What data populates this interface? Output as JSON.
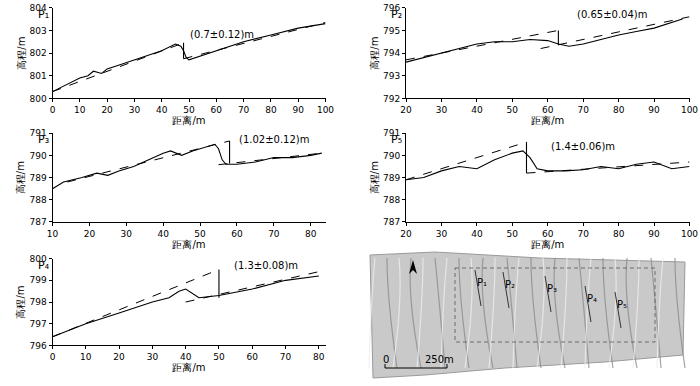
{
  "chart_data": [
    {
      "type": "line",
      "title": "P₁",
      "x_label": "距离/m",
      "y_label": "高程/m",
      "xlim": [
        0,
        100
      ],
      "xticks": [
        0,
        10,
        20,
        30,
        40,
        50,
        60,
        70,
        80,
        90,
        100
      ],
      "ylim": [
        800,
        804
      ],
      "yticks": [
        800,
        801,
        802,
        803,
        804
      ],
      "grid": false,
      "series": [
        {
          "x": [
            0,
            5,
            10,
            13,
            15,
            18,
            20,
            25,
            30,
            35,
            40,
            45,
            47,
            48,
            49,
            50,
            55,
            60,
            70,
            80,
            90,
            100
          ],
          "values": [
            800.3,
            800.6,
            800.9,
            801.0,
            801.2,
            801.1,
            801.3,
            801.5,
            801.7,
            801.9,
            802.1,
            802.4,
            802.3,
            802.1,
            801.8,
            801.7,
            801.9,
            802.1,
            802.5,
            802.8,
            803.1,
            803.3
          ],
          "line_style": "solid",
          "color": "#000000"
        },
        {
          "x": [
            0,
            48
          ],
          "values": [
            800.3,
            802.45
          ],
          "line_style": "dash",
          "color": "#000000"
        },
        {
          "x": [
            48,
            100
          ],
          "values": [
            801.75,
            803.35
          ],
          "line_style": "dash",
          "color": "#000000"
        },
        {
          "x": [
            48,
            48
          ],
          "values": [
            802.45,
            801.75
          ],
          "line_style": "solid",
          "color": "#000000"
        }
      ],
      "annotations": [
        {
          "text": "(0.7±0.12)m",
          "x": 62,
          "y": 802.8
        }
      ]
    },
    {
      "type": "line",
      "title": "P₂",
      "x_label": "距离/m",
      "y_label": "高程/m",
      "xlim": [
        20,
        100
      ],
      "xticks": [
        20,
        30,
        40,
        50,
        60,
        70,
        80,
        90,
        100
      ],
      "ylim": [
        792,
        796
      ],
      "yticks": [
        792,
        793,
        794,
        795,
        796
      ],
      "grid": false,
      "series": [
        {
          "x": [
            20,
            25,
            30,
            35,
            40,
            45,
            50,
            55,
            60,
            63,
            66,
            70,
            75,
            80,
            85,
            90,
            98
          ],
          "values": [
            793.6,
            793.8,
            794.0,
            794.2,
            794.4,
            794.5,
            794.5,
            794.6,
            794.55,
            794.4,
            794.3,
            794.4,
            794.6,
            794.8,
            794.95,
            795.1,
            795.5
          ],
          "line_style": "solid",
          "color": "#000000"
        },
        {
          "x": [
            20,
            63
          ],
          "values": [
            793.7,
            795.0
          ],
          "line_style": "dash",
          "color": "#000000"
        },
        {
          "x": [
            58,
            100
          ],
          "values": [
            794.2,
            795.6
          ],
          "line_style": "dash",
          "color": "#000000"
        },
        {
          "x": [
            63,
            63
          ],
          "values": [
            795.0,
            794.35
          ],
          "line_style": "solid",
          "color": "#000000"
        }
      ],
      "annotations": [
        {
          "text": "(0.65±0.04)m",
          "x": 78,
          "y": 795.7
        }
      ]
    },
    {
      "type": "line",
      "title": "P₃",
      "x_label": "距离/m",
      "y_label": "高程/m",
      "xlim": [
        10,
        84
      ],
      "xticks": [
        10,
        20,
        30,
        40,
        50,
        60,
        70,
        80
      ],
      "ylim": [
        787,
        791
      ],
      "yticks": [
        787,
        788,
        789,
        790,
        791
      ],
      "grid": false,
      "series": [
        {
          "x": [
            10,
            13,
            18,
            22,
            25,
            28,
            32,
            36,
            40,
            42,
            45,
            48,
            52,
            54,
            55,
            56,
            57,
            60,
            65,
            70,
            75,
            80,
            83
          ],
          "values": [
            788.5,
            788.8,
            789.0,
            789.2,
            789.1,
            789.3,
            789.5,
            789.8,
            790.1,
            790.2,
            790.0,
            790.2,
            790.4,
            790.5,
            790.3,
            789.8,
            789.6,
            789.6,
            789.7,
            789.9,
            789.9,
            790.0,
            790.1
          ],
          "line_style": "solid",
          "color": "#000000"
        },
        {
          "x": [
            14,
            58
          ],
          "values": [
            788.8,
            790.65
          ],
          "line_style": "dash",
          "color": "#000000"
        },
        {
          "x": [
            55,
            83
          ],
          "values": [
            789.58,
            790.1
          ],
          "line_style": "dash",
          "color": "#000000"
        },
        {
          "x": [
            58,
            58
          ],
          "values": [
            790.65,
            789.63
          ],
          "line_style": "solid",
          "color": "#000000"
        }
      ],
      "annotations": [
        {
          "text": "(1.02±0.12)m",
          "x": 70,
          "y": 790.7
        }
      ]
    },
    {
      "type": "line",
      "title": "P₅",
      "x_label": "距离/m",
      "y_label": "高程/m",
      "xlim": [
        20,
        100
      ],
      "xticks": [
        20,
        30,
        40,
        50,
        60,
        70,
        80,
        90,
        100
      ],
      "ylim": [
        787,
        791
      ],
      "yticks": [
        787,
        788,
        789,
        790,
        791
      ],
      "grid": false,
      "series": [
        {
          "x": [
            20,
            25,
            30,
            35,
            40,
            45,
            50,
            53,
            55,
            57,
            60,
            65,
            70,
            75,
            80,
            85,
            90,
            95,
            100
          ],
          "values": [
            788.9,
            789.0,
            789.3,
            789.5,
            789.4,
            789.8,
            790.1,
            790.2,
            789.9,
            789.4,
            789.3,
            789.3,
            789.35,
            789.5,
            789.4,
            789.6,
            789.7,
            789.4,
            789.5
          ],
          "line_style": "solid",
          "color": "#000000"
        },
        {
          "x": [
            20,
            54
          ],
          "values": [
            788.9,
            790.6
          ],
          "line_style": "dash",
          "color": "#000000"
        },
        {
          "x": [
            54,
            100
          ],
          "values": [
            789.2,
            789.7
          ],
          "line_style": "dash",
          "color": "#000000"
        },
        {
          "x": [
            54,
            54
          ],
          "values": [
            790.6,
            789.2
          ],
          "line_style": "solid",
          "color": "#000000"
        }
      ],
      "annotations": [
        {
          "text": "(1.4±0.06)m",
          "x": 70,
          "y": 790.4
        }
      ]
    },
    {
      "type": "line",
      "title": "P₄",
      "x_label": "距离/m",
      "y_label": "高程/m",
      "xlim": [
        0,
        82
      ],
      "xticks": [
        0,
        10,
        20,
        30,
        40,
        50,
        60,
        70,
        80
      ],
      "ylim": [
        796,
        800
      ],
      "yticks": [
        796,
        797,
        798,
        799,
        800
      ],
      "grid": false,
      "series": [
        {
          "x": [
            0,
            10,
            20,
            30,
            35,
            38,
            40,
            42,
            44,
            50,
            60,
            70,
            80
          ],
          "values": [
            796.4,
            797.0,
            797.5,
            798.0,
            798.2,
            798.5,
            798.6,
            798.4,
            798.2,
            798.3,
            798.6,
            799.0,
            799.2
          ],
          "line_style": "solid",
          "color": "#000000"
        },
        {
          "x": [
            0,
            50
          ],
          "values": [
            796.4,
            799.5
          ],
          "line_style": "dash",
          "color": "#000000"
        },
        {
          "x": [
            40,
            80
          ],
          "values": [
            798.0,
            799.4
          ],
          "line_style": "dash",
          "color": "#000000"
        },
        {
          "x": [
            50,
            50
          ],
          "values": [
            799.5,
            798.2
          ],
          "line_style": "solid",
          "color": "#000000"
        }
      ],
      "annotations": [
        {
          "text": "(1.3±0.08)m",
          "x": 64,
          "y": 799.7
        }
      ]
    }
  ],
  "map": {
    "labels": [
      "P₁",
      "P₂",
      "P₃",
      "P₄",
      "P₅"
    ],
    "scale_labels": [
      "0",
      "250m"
    ]
  }
}
